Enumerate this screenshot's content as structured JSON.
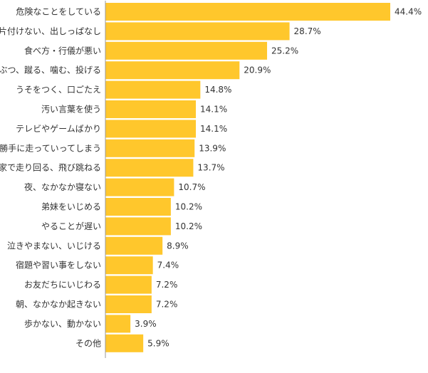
{
  "chart_data": {
    "type": "bar",
    "orientation": "horizontal",
    "categories": [
      "危険なことをしている",
      "片付けない、出しっぱなし",
      "食べ方・行儀が悪い",
      "ぶつ、蹴る、噛む、投げる",
      "うそをつく、口ごたえ",
      "汚い言葉を使う",
      "テレビやゲームばかり",
      "勝手に走っていってしまう",
      "家で走り回る、飛び跳ねる",
      "夜、なかなか寝ない",
      "弟妹をいじめる",
      "やることが遅い",
      "泣きやまない、いじける",
      "宿題や習い事をしない",
      "お友だちにいじわる",
      "朝、なかなか起きない",
      "歩かない、動かない",
      "その他"
    ],
    "values": [
      44.4,
      28.7,
      25.2,
      20.9,
      14.8,
      14.1,
      14.1,
      13.9,
      13.7,
      10.7,
      10.2,
      10.2,
      8.9,
      7.4,
      7.2,
      7.2,
      3.9,
      5.9
    ],
    "value_labels": [
      "44.4%",
      "28.7%",
      "25.2%",
      "20.9%",
      "14.8%",
      "14.1%",
      "14.1%",
      "13.9%",
      "13.7%",
      "10.7%",
      "10.2%",
      "10.2%",
      "8.9%",
      "7.4%",
      "7.2%",
      "7.2%",
      "3.9%",
      "5.9%"
    ],
    "xlim": [
      0,
      44.4
    ],
    "grid": false,
    "colors": {
      "bar": "#FFC72C",
      "axis": "#999999",
      "text": "#333333"
    }
  }
}
